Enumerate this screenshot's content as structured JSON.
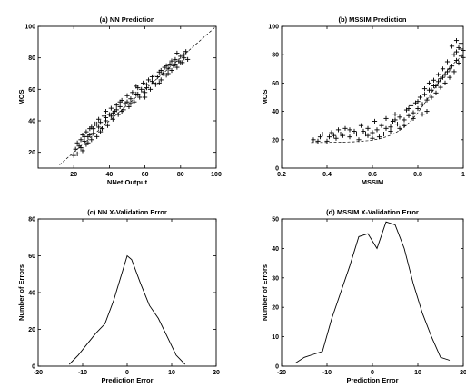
{
  "chart_data": [
    {
      "type": "scatter",
      "title": "(a) NN Prediction",
      "xlabel": "NNet Output",
      "ylabel": "MOS",
      "xlim": [
        0,
        100
      ],
      "ylim": [
        10,
        100
      ],
      "xticks": [
        20,
        40,
        60,
        80,
        100
      ],
      "yticks": [
        20,
        40,
        60,
        80,
        100
      ],
      "marker": "+",
      "reference_line": "dashed diagonal y = x",
      "series": [
        {
          "points": [
            [
              20,
              18
            ],
            [
              21,
              22
            ],
            [
              22,
              19
            ],
            [
              22,
              26
            ],
            [
              23,
              24
            ],
            [
              24,
              28
            ],
            [
              25,
              21
            ],
            [
              25,
              31
            ],
            [
              26,
              27
            ],
            [
              27,
              25
            ],
            [
              27,
              33
            ],
            [
              28,
              30
            ],
            [
              29,
              35
            ],
            [
              30,
              28
            ],
            [
              30,
              36
            ],
            [
              31,
              32
            ],
            [
              32,
              38
            ],
            [
              33,
              30
            ],
            [
              34,
              36
            ],
            [
              34,
              41
            ],
            [
              35,
              39
            ],
            [
              36,
              35
            ],
            [
              37,
              43
            ],
            [
              38,
              40
            ],
            [
              38,
              46
            ],
            [
              39,
              37
            ],
            [
              40,
              44
            ],
            [
              41,
              48
            ],
            [
              42,
              41
            ],
            [
              43,
              46
            ],
            [
              44,
              50
            ],
            [
              45,
              44
            ],
            [
              46,
              49
            ],
            [
              47,
              53
            ],
            [
              48,
              47
            ],
            [
              49,
              51
            ],
            [
              50,
              56
            ],
            [
              51,
              49
            ],
            [
              52,
              54
            ],
            [
              53,
              58
            ],
            [
              54,
              52
            ],
            [
              55,
              57
            ],
            [
              56,
              61
            ],
            [
              57,
              55
            ],
            [
              58,
              60
            ],
            [
              59,
              64
            ],
            [
              60,
              58
            ],
            [
              61,
              63
            ],
            [
              62,
              66
            ],
            [
              63,
              60
            ],
            [
              64,
              65
            ],
            [
              65,
              69
            ],
            [
              66,
              63
            ],
            [
              67,
              68
            ],
            [
              68,
              71
            ],
            [
              69,
              66
            ],
            [
              70,
              70
            ],
            [
              71,
              74
            ],
            [
              72,
              69
            ],
            [
              73,
              73
            ],
            [
              74,
              76
            ],
            [
              75,
              72
            ],
            [
              76,
              75
            ],
            [
              77,
              79
            ],
            [
              78,
              74
            ],
            [
              79,
              78
            ],
            [
              80,
              81
            ],
            [
              81,
              77
            ],
            [
              82,
              80
            ],
            [
              83,
              84
            ],
            [
              84,
              79
            ],
            [
              78,
              83
            ],
            [
              75,
              78
            ],
            [
              72,
              75
            ],
            [
              68,
              64
            ],
            [
              64,
              68
            ],
            [
              60,
              55
            ],
            [
              55,
              62
            ],
            [
              50,
              52
            ],
            [
              46,
              52
            ],
            [
              42,
              45
            ],
            [
              38,
              42
            ],
            [
              35,
              33
            ],
            [
              31,
              35
            ],
            [
              28,
              26
            ],
            [
              24,
              23
            ],
            [
              26,
              30
            ],
            [
              29,
              31
            ],
            [
              33,
              38
            ],
            [
              37,
              38
            ],
            [
              41,
              43
            ],
            [
              44,
              47
            ],
            [
              47,
              46
            ],
            [
              52,
              51
            ],
            [
              56,
              57
            ],
            [
              61,
              61
            ],
            [
              65,
              64
            ],
            [
              69,
              72
            ],
            [
              73,
              70
            ],
            [
              77,
              76
            ],
            [
              80,
              77
            ],
            [
              82,
              82
            ]
          ]
        }
      ]
    },
    {
      "type": "scatter",
      "title": "(b) MSSIM Prediction",
      "xlabel": "MSSIM",
      "ylabel": "MOS",
      "xlim": [
        0.2,
        1
      ],
      "ylim": [
        0,
        100
      ],
      "xticks": [
        0.2,
        0.4,
        0.6,
        0.8,
        1
      ],
      "yticks": [
        0,
        20,
        40,
        60,
        80,
        100
      ],
      "marker": "+",
      "fit_line": "dashed nonlinear fit",
      "series": [
        {
          "points": [
            [
              0.34,
              20
            ],
            [
              0.37,
              22
            ],
            [
              0.4,
              19
            ],
            [
              0.42,
              25
            ],
            [
              0.44,
              21
            ],
            [
              0.46,
              24
            ],
            [
              0.48,
              28
            ],
            [
              0.5,
              22
            ],
            [
              0.52,
              26
            ],
            [
              0.54,
              20
            ],
            [
              0.55,
              30
            ],
            [
              0.57,
              24
            ],
            [
              0.58,
              28
            ],
            [
              0.6,
              25
            ],
            [
              0.61,
              33
            ],
            [
              0.62,
              27
            ],
            [
              0.64,
              30
            ],
            [
              0.65,
              24
            ],
            [
              0.66,
              35
            ],
            [
              0.68,
              29
            ],
            [
              0.69,
              33
            ],
            [
              0.7,
              38
            ],
            [
              0.71,
              31
            ],
            [
              0.72,
              36
            ],
            [
              0.74,
              34
            ],
            [
              0.75,
              41
            ],
            [
              0.76,
              37
            ],
            [
              0.77,
              44
            ],
            [
              0.78,
              39
            ],
            [
              0.79,
              46
            ],
            [
              0.8,
              42
            ],
            [
              0.81,
              50
            ],
            [
              0.82,
              45
            ],
            [
              0.83,
              52
            ],
            [
              0.84,
              48
            ],
            [
              0.85,
              55
            ],
            [
              0.86,
              50
            ],
            [
              0.87,
              58
            ],
            [
              0.88,
              53
            ],
            [
              0.89,
              61
            ],
            [
              0.9,
              57
            ],
            [
              0.91,
              64
            ],
            [
              0.92,
              60
            ],
            [
              0.93,
              68
            ],
            [
              0.94,
              64
            ],
            [
              0.95,
              72
            ],
            [
              0.96,
              68
            ],
            [
              0.97,
              76
            ],
            [
              0.97,
              82
            ],
            [
              0.98,
              74
            ],
            [
              0.98,
              85
            ],
            [
              0.99,
              79
            ],
            [
              0.99,
              88
            ],
            [
              1.0,
              83
            ],
            [
              1.0,
              78
            ],
            [
              0.96,
              80
            ],
            [
              0.94,
              70
            ],
            [
              0.92,
              66
            ],
            [
              0.9,
              63
            ],
            [
              0.88,
              58
            ],
            [
              0.86,
              55
            ],
            [
              0.84,
              40
            ],
            [
              0.82,
              38
            ],
            [
              0.8,
              47
            ],
            [
              0.78,
              35
            ],
            [
              0.76,
              42
            ],
            [
              0.74,
              30
            ],
            [
              0.72,
              28
            ],
            [
              0.7,
              34
            ],
            [
              0.68,
              26
            ],
            [
              0.66,
              28
            ],
            [
              0.63,
              22
            ],
            [
              0.6,
              21
            ],
            [
              0.58,
              23
            ],
            [
              0.56,
              26
            ],
            [
              0.53,
              24
            ],
            [
              0.5,
              27
            ],
            [
              0.47,
              23
            ],
            [
              0.45,
              27
            ],
            [
              0.43,
              23
            ],
            [
              0.41,
              22
            ],
            [
              0.38,
              24
            ],
            [
              0.36,
              19
            ],
            [
              0.95,
              86
            ],
            [
              0.97,
              90
            ],
            [
              0.99,
              84
            ],
            [
              0.93,
              75
            ],
            [
              0.91,
              70
            ],
            [
              0.89,
              66
            ],
            [
              0.87,
              62
            ],
            [
              0.85,
              60
            ],
            [
              0.83,
              56
            ]
          ]
        }
      ]
    },
    {
      "type": "line",
      "title": "(c) NN X-Validation Error",
      "xlabel": "Prediction Error",
      "ylabel": "Number of Errors",
      "xlim": [
        -20,
        20
      ],
      "ylim": [
        0,
        80
      ],
      "xticks": [
        -20,
        -10,
        0,
        10,
        20
      ],
      "yticks": [
        0,
        20,
        40,
        60,
        80
      ],
      "series": [
        {
          "x": [
            -13,
            -11,
            -9,
            -7,
            -5,
            -3,
            -1,
            0,
            1,
            3,
            5,
            7,
            9,
            11,
            13
          ],
          "y": [
            1,
            6,
            12,
            18,
            23,
            36,
            52,
            60,
            58,
            45,
            33,
            26,
            16,
            6,
            1
          ]
        }
      ]
    },
    {
      "type": "line",
      "title": "(d) MSSIM X-Validation Error",
      "xlabel": "Prediction Error",
      "ylabel": "Number of Errors",
      "xlim": [
        -20,
        20
      ],
      "ylim": [
        0,
        50
      ],
      "xticks": [
        -20,
        -10,
        0,
        10,
        20
      ],
      "yticks": [
        0,
        10,
        20,
        30,
        40,
        50
      ],
      "series": [
        {
          "x": [
            -17,
            -15,
            -13,
            -11,
            -9,
            -7,
            -5,
            -3,
            -1,
            1,
            3,
            5,
            7,
            9,
            11,
            13,
            15,
            17
          ],
          "y": [
            1,
            3,
            4,
            5,
            16,
            25,
            34,
            44,
            45,
            40,
            49,
            48,
            40,
            28,
            18,
            10,
            3,
            2
          ]
        }
      ]
    }
  ]
}
